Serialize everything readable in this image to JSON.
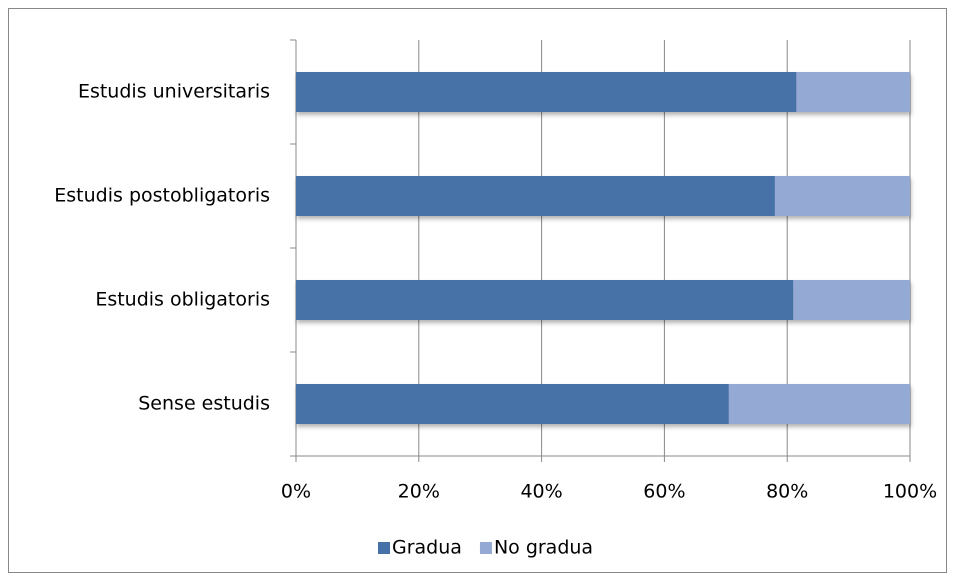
{
  "chart_data": {
    "type": "stacked_bar_horizontal",
    "categories": [
      "Estudis universitaris",
      "Estudis postobligatoris",
      "Estudis obligatoris",
      "Sense estudis"
    ],
    "series": [
      {
        "name": "Gradua",
        "color": "#4772a8",
        "values": [
          81.5,
          78,
          81,
          70.5
        ]
      },
      {
        "name": "No gradua",
        "color": "#94a9d3",
        "values": [
          18.5,
          22,
          19,
          29.5
        ]
      }
    ],
    "xlim": [
      0,
      100
    ],
    "xticks": [
      {
        "value": 0,
        "label": "0%"
      },
      {
        "value": 20,
        "label": "20%"
      },
      {
        "value": 40,
        "label": "40%"
      },
      {
        "value": 60,
        "label": "60%"
      },
      {
        "value": 80,
        "label": "80%"
      },
      {
        "value": 100,
        "label": "100%"
      }
    ],
    "grid": true,
    "legend": "bottom"
  }
}
